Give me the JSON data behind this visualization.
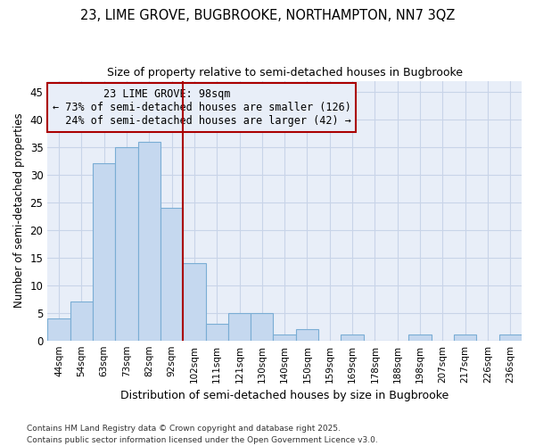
{
  "title1": "23, LIME GROVE, BUGBROOKE, NORTHAMPTON, NN7 3QZ",
  "title2": "Size of property relative to semi-detached houses in Bugbrooke",
  "xlabel": "Distribution of semi-detached houses by size in Bugbrooke",
  "ylabel": "Number of semi-detached properties",
  "categories": [
    "44sqm",
    "54sqm",
    "63sqm",
    "73sqm",
    "82sqm",
    "92sqm",
    "102sqm",
    "111sqm",
    "121sqm",
    "130sqm",
    "140sqm",
    "150sqm",
    "159sqm",
    "169sqm",
    "178sqm",
    "188sqm",
    "198sqm",
    "207sqm",
    "217sqm",
    "226sqm",
    "236sqm"
  ],
  "values": [
    4,
    7,
    32,
    35,
    36,
    24,
    14,
    3,
    5,
    5,
    1,
    2,
    0,
    1,
    0,
    0,
    1,
    0,
    1,
    0,
    1
  ],
  "bar_color": "#c5d8ef",
  "bar_edge_color": "#7aadd4",
  "property_label": "23 LIME GROVE: 98sqm",
  "pct_smaller": 73,
  "n_smaller": 126,
  "pct_larger": 24,
  "n_larger": 42,
  "annotation_box_color": "#aa0000",
  "vline_color": "#aa0000",
  "background_color": "#ffffff",
  "plot_bg_color": "#e8eef8",
  "grid_color": "#c8d4e8",
  "ylim": [
    0,
    47
  ],
  "yticks": [
    0,
    5,
    10,
    15,
    20,
    25,
    30,
    35,
    40,
    45
  ],
  "footer1": "Contains HM Land Registry data © Crown copyright and database right 2025.",
  "footer2": "Contains public sector information licensed under the Open Government Licence v3.0."
}
